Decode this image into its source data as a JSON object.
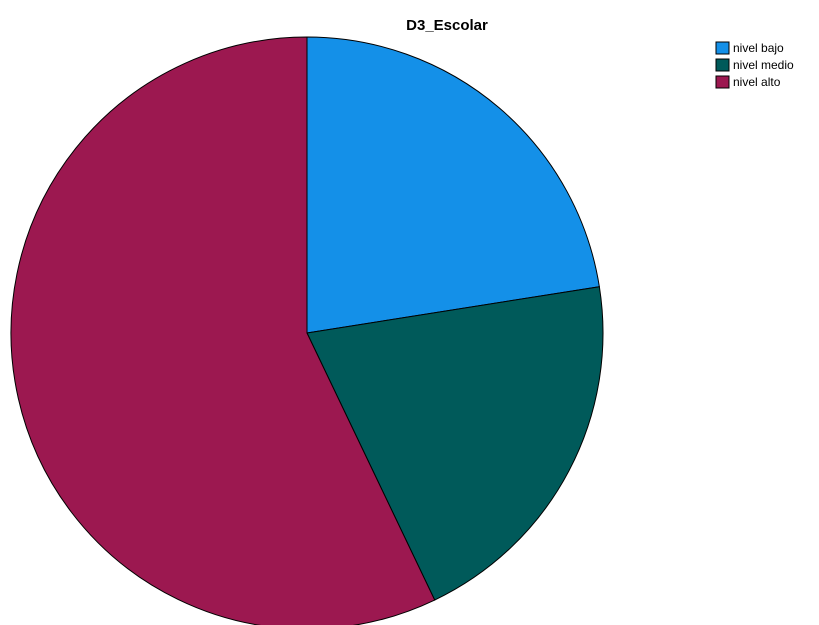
{
  "chart_data": {
    "type": "pie",
    "title": "D3_Escolar",
    "start": "top",
    "direction": "clockwise",
    "legend_position": "top-right",
    "categories": [
      "nivel bajo",
      "nivel medio",
      "nivel alto"
    ],
    "values": [
      22.5,
      20.4,
      57.1
    ],
    "colors": [
      "#1490E8",
      "#005A5A",
      "#9C1850"
    ]
  }
}
